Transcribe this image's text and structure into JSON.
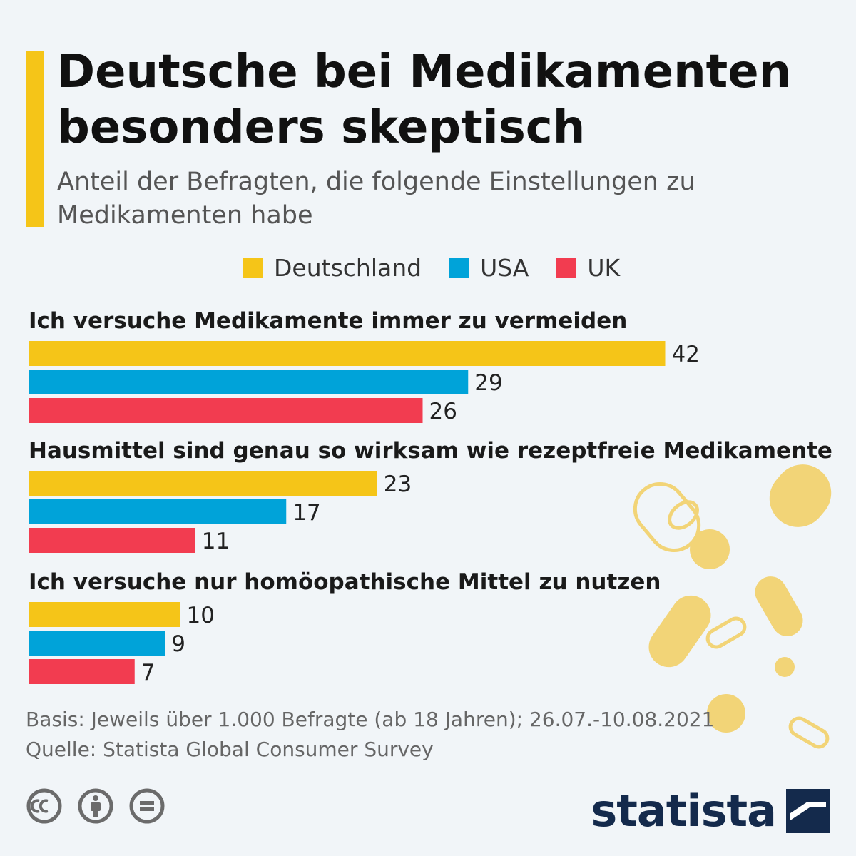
{
  "header": {
    "title": "Deutsche bei Medikamenten besonders skeptisch",
    "subtitle": "Anteil der Befragten, die folgende Einstellungen zu Medikamenten habe"
  },
  "legend": [
    {
      "label": "Deutschland",
      "color": "#f5c518"
    },
    {
      "label": "USA",
      "color": "#00a3d9"
    },
    {
      "label": "UK",
      "color": "#f23c50"
    }
  ],
  "chart_data": {
    "type": "bar",
    "orientation": "horizontal",
    "categories": [
      "Ich versuche Medikamente immer zu vermeiden",
      "Hausmittel sind genau so wirksam wie rezeptfreie Medikamente",
      "Ich versuche nur homöopathische Mittel zu nutzen"
    ],
    "series": [
      {
        "name": "Deutschland",
        "color": "#f5c518",
        "values": [
          42,
          23,
          10
        ]
      },
      {
        "name": "USA",
        "color": "#00a3d9",
        "values": [
          29,
          17,
          9
        ]
      },
      {
        "name": "UK",
        "color": "#f23c50",
        "values": [
          26,
          11,
          7
        ]
      }
    ],
    "grid": false,
    "legend_position": "top"
  },
  "footer": {
    "basis": "Basis: Jeweils über 1.000 Befragte (ab 18 Jahren); 26.07.-10.08.2021",
    "source": "Quelle: Statista Global Consumer Survey"
  },
  "license_icons": [
    "cc-icon",
    "attribution-icon",
    "no-derivatives-icon"
  ],
  "brand": {
    "name": "statista",
    "color": "#142a4c"
  }
}
